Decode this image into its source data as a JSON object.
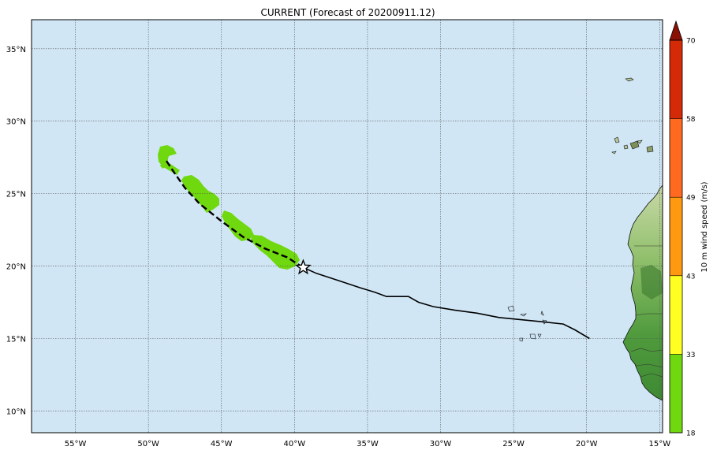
{
  "title": "CURRENT (Forecast of 20200911.12)",
  "map": {
    "lon_range": [
      -58,
      -14.8
    ],
    "lat_range": [
      8.5,
      37
    ],
    "lon_ticks": [
      {
        "value": -55,
        "label": "55°W"
      },
      {
        "value": -50,
        "label": "50°W"
      },
      {
        "value": -45,
        "label": "45°W"
      },
      {
        "value": -40,
        "label": "40°W"
      },
      {
        "value": -35,
        "label": "35°W"
      },
      {
        "value": -30,
        "label": "30°W"
      },
      {
        "value": -25,
        "label": "25°W"
      },
      {
        "value": -20,
        "label": "20°W"
      },
      {
        "value": -15,
        "label": "15°W"
      }
    ],
    "lat_ticks": [
      {
        "value": 10,
        "label": "10°N"
      },
      {
        "value": 15,
        "label": "15°N"
      },
      {
        "value": 20,
        "label": "20°N"
      },
      {
        "value": 25,
        "label": "25°N"
      },
      {
        "value": 30,
        "label": "30°N"
      },
      {
        "value": 35,
        "label": "35°N"
      }
    ],
    "grid": true,
    "ocean_color": "#d0e6f5",
    "swath_color": "#6fd80e",
    "current_position": {
      "lon": -39.4,
      "lat": 19.9
    },
    "past_track": [
      [
        -19.8,
        15.0
      ],
      [
        -20.8,
        15.6
      ],
      [
        -21.6,
        16.0
      ],
      [
        -23.0,
        16.15
      ],
      [
        -24.5,
        16.3
      ],
      [
        -26.0,
        16.45
      ],
      [
        -27.5,
        16.75
      ],
      [
        -29.0,
        16.95
      ],
      [
        -30.5,
        17.2
      ],
      [
        -31.5,
        17.5
      ],
      [
        -32.2,
        17.9
      ],
      [
        -33.7,
        17.9
      ],
      [
        -34.5,
        18.2
      ],
      [
        -35.5,
        18.5
      ],
      [
        -37.0,
        19.0
      ],
      [
        -38.5,
        19.5
      ],
      [
        -39.4,
        19.9
      ]
    ],
    "forecast_track": [
      [
        -39.4,
        19.9
      ],
      [
        -40.5,
        20.6
      ],
      [
        -42.0,
        21.2
      ],
      [
        -43.5,
        22.0
      ],
      [
        -45.0,
        23.1
      ],
      [
        -46.5,
        24.3
      ],
      [
        -47.5,
        25.4
      ],
      [
        -48.2,
        26.4
      ],
      [
        -48.8,
        27.3
      ]
    ]
  },
  "colorbar": {
    "label": "10 m wind speed (m/s)",
    "ticks": [
      "18",
      "33",
      "43",
      "49",
      "58",
      "70"
    ],
    "colors": [
      "#6fd80e",
      "#ffff22",
      "#ff9a10",
      "#ff6a20",
      "#d42a08"
    ],
    "extend_color": "#8b1004"
  }
}
